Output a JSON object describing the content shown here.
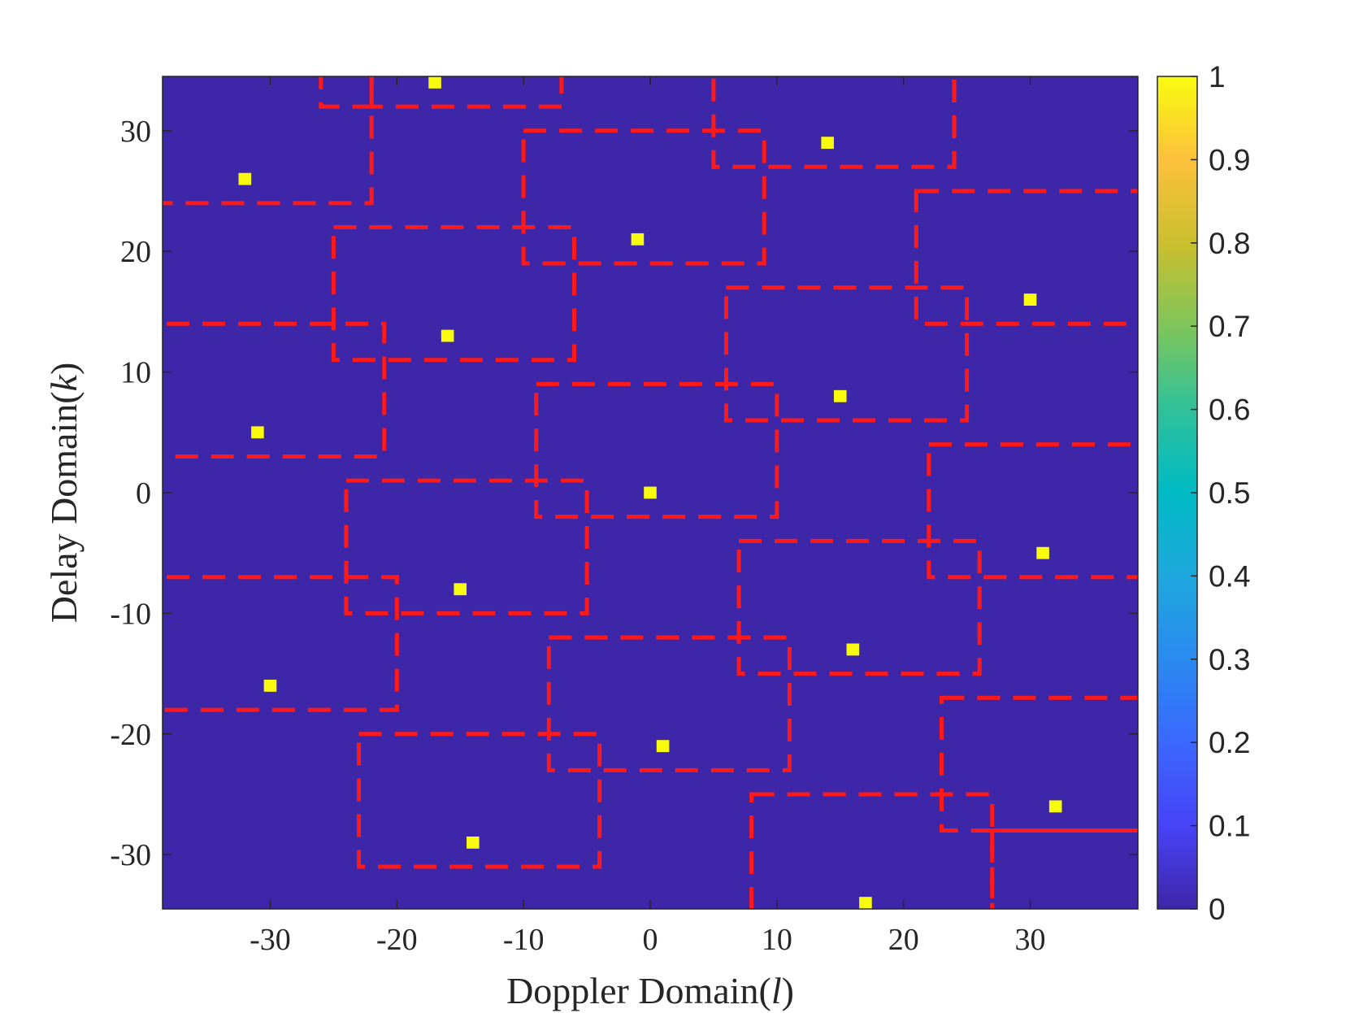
{
  "chart_data": {
    "type": "heatmap",
    "xlabel": {
      "prefix": "Doppler Domain(",
      "var": "l",
      "suffix": ")"
    },
    "ylabel": {
      "prefix": "Delay Domain(",
      "var": "k",
      "suffix": ")"
    },
    "xlim": [
      -38.5,
      38.5
    ],
    "ylim": [
      -34.5,
      34.5
    ],
    "xticks": [
      -30,
      -20,
      -10,
      0,
      10,
      20,
      30
    ],
    "yticks": [
      -30,
      -20,
      -10,
      0,
      10,
      20,
      30
    ],
    "xtick_labels": [
      "-30",
      "-20",
      "-10",
      "0",
      "10",
      "20",
      "30"
    ],
    "ytick_labels": [
      "-30",
      "-20",
      "-10",
      "0",
      "10",
      "20",
      "30"
    ],
    "background_value": 0,
    "colormap": "parula",
    "colorbar": {
      "range": [
        0,
        1
      ],
      "ticks": [
        0,
        0.1,
        0.2,
        0.3,
        0.4,
        0.5,
        0.6,
        0.7,
        0.8,
        0.9,
        1
      ],
      "tick_labels": [
        "0",
        "0.1",
        "0.2",
        "0.3",
        "0.4",
        "0.5",
        "0.6",
        "0.7",
        "0.8",
        "0.9",
        "1"
      ]
    },
    "colors": {
      "background": "#3e26a8",
      "point": "#f9fb0e",
      "region_border": "#ff1a1a"
    },
    "points": [
      {
        "x": -17,
        "y": 34,
        "value": 1
      },
      {
        "x": 14,
        "y": 29,
        "value": 1
      },
      {
        "x": -32,
        "y": 26,
        "value": 1
      },
      {
        "x": -1,
        "y": 21,
        "value": 1
      },
      {
        "x": 30,
        "y": 16,
        "value": 1
      },
      {
        "x": -16,
        "y": 13,
        "value": 1
      },
      {
        "x": 15,
        "y": 8,
        "value": 1
      },
      {
        "x": -31,
        "y": 5,
        "value": 1
      },
      {
        "x": 0,
        "y": 0,
        "value": 1
      },
      {
        "x": 31,
        "y": -5,
        "value": 1
      },
      {
        "x": -15,
        "y": -8,
        "value": 1
      },
      {
        "x": 16,
        "y": -13,
        "value": 1
      },
      {
        "x": -30,
        "y": -16,
        "value": 1
      },
      {
        "x": 1,
        "y": -21,
        "value": 1
      },
      {
        "x": 32,
        "y": -26,
        "value": 1
      },
      {
        "x": -14,
        "y": -29,
        "value": 1
      },
      {
        "x": 17,
        "y": -34,
        "value": 1
      }
    ],
    "regions": [
      {
        "x0": -22,
        "x1": -26,
        "y0": 32,
        "y1": 37
      },
      {
        "x0": -7,
        "x1": -22,
        "y0": 32,
        "y1": 37
      },
      {
        "x0": -22,
        "x1": -41,
        "y0": 24,
        "y1": 35
      },
      {
        "x0": -10,
        "x1": 9,
        "y0": 19,
        "y1": 30
      },
      {
        "x0": 5,
        "x1": 24,
        "y0": 27,
        "y1": 38
      },
      {
        "x0": -25,
        "x1": -6,
        "y0": 11,
        "y1": 22
      },
      {
        "x0": 21,
        "x1": 41,
        "y0": 14,
        "y1": 25
      },
      {
        "x0": 6,
        "x1": 25,
        "y0": 6,
        "y1": 17
      },
      {
        "x0": -41,
        "x1": -21,
        "y0": 3,
        "y1": 14
      },
      {
        "x0": -9,
        "x1": 10,
        "y0": -2,
        "y1": 9
      },
      {
        "x0": 22,
        "x1": 41,
        "y0": -7,
        "y1": 4
      },
      {
        "x0": -24,
        "x1": -5,
        "y0": -10,
        "y1": 1
      },
      {
        "x0": 7,
        "x1": 26,
        "y0": -15,
        "y1": -4
      },
      {
        "x0": -41,
        "x1": -20,
        "y0": -18,
        "y1": -7
      },
      {
        "x0": -8,
        "x1": 11,
        "y0": -23,
        "y1": -12
      },
      {
        "x0": 23,
        "x1": 41,
        "y0": -28,
        "y1": -17
      },
      {
        "x0": -23,
        "x1": -4,
        "y0": -31,
        "y1": -20
      },
      {
        "x0": 8,
        "x1": 27,
        "y0": -38,
        "y1": -25
      },
      {
        "x0": 27,
        "x1": 41,
        "y0": -38,
        "y1": -28
      }
    ]
  }
}
